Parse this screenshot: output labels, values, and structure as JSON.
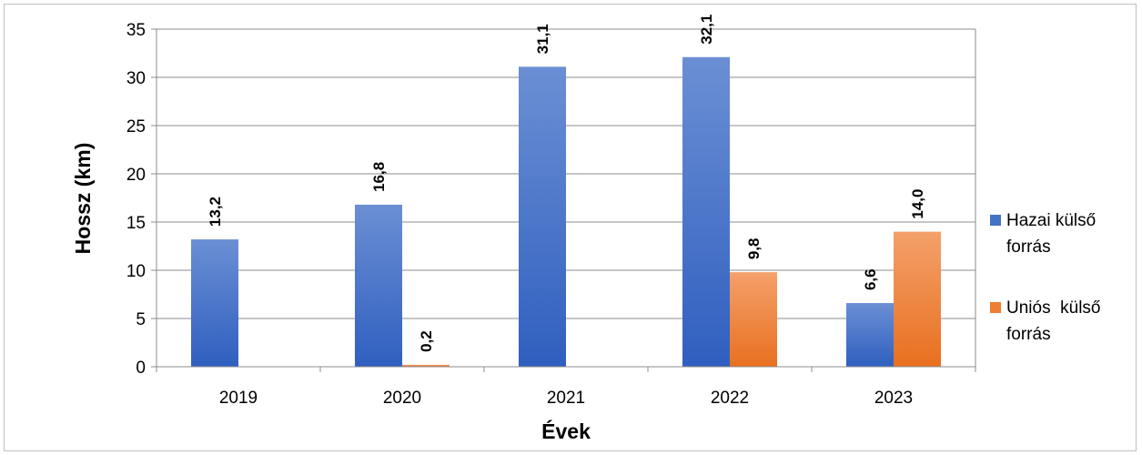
{
  "chart_data": {
    "type": "bar",
    "title": "",
    "xlabel": "Évek",
    "ylabel": "Hossz (km)",
    "categories": [
      "2019",
      "2020",
      "2021",
      "2022",
      "2023"
    ],
    "ylim": [
      0,
      35
    ],
    "yticks": [
      0,
      5,
      10,
      15,
      20,
      25,
      30,
      35
    ],
    "grid": true,
    "legend_position": "right",
    "series": [
      {
        "name_lines": [
          "Hazai külső",
          "forrás"
        ],
        "color": "#4472C4",
        "values": [
          13.2,
          16.8,
          31.1,
          32.1,
          6.6
        ],
        "labels": [
          "13,2",
          "16,8",
          "31,1",
          "32,1",
          "6,6"
        ]
      },
      {
        "name_lines": [
          "Uniós  külső",
          "forrás"
        ],
        "color": "#ED7D31",
        "values": [
          null,
          0.2,
          null,
          9.8,
          14.0
        ],
        "labels": [
          null,
          "0,2",
          null,
          "9,8",
          "14,0"
        ]
      }
    ]
  }
}
